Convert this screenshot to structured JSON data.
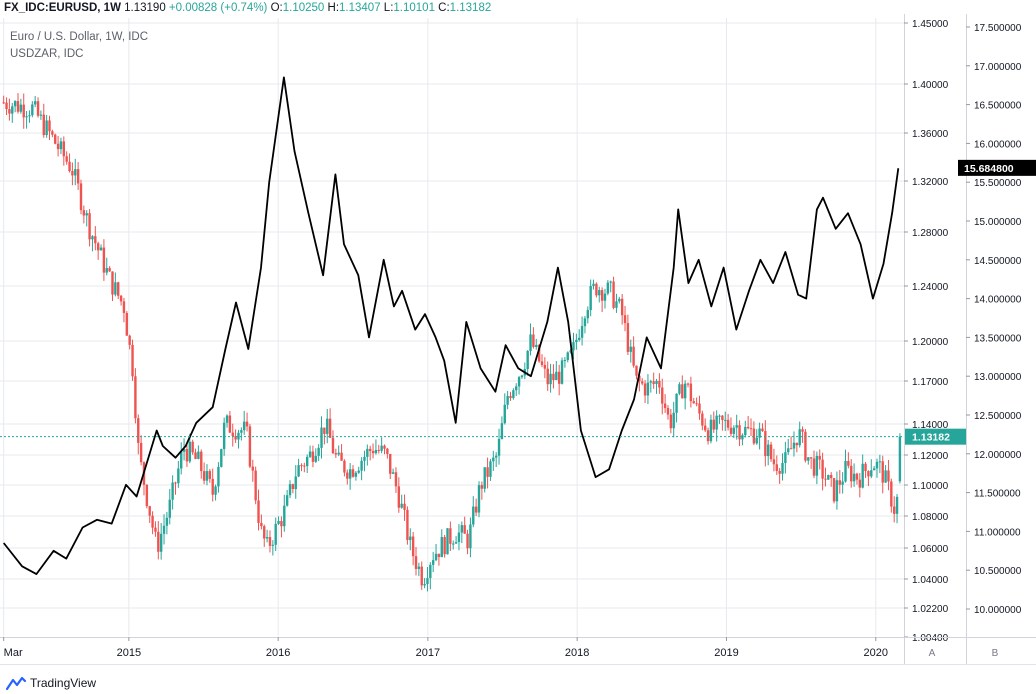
{
  "header": {
    "symbol": "FX_IDC:EURUSD, 1W",
    "last": "1.13190",
    "change": "+0.00828 (+0.74%)",
    "o_label": "O:",
    "o_value": "1.10250",
    "h_label": "H:",
    "h_value": "1.13407",
    "l_label": "L:",
    "l_value": "1.10101",
    "c_label": "C:",
    "c_value": "1.13182"
  },
  "legend": {
    "main_series": "Euro / U.S. Dollar, 1W, IDC",
    "compare_series": "USDZAR, IDC"
  },
  "axis_buttons": {
    "a": "A",
    "b": "B"
  },
  "branding": {
    "name": "TradingView"
  },
  "colors": {
    "up": "#26a69a",
    "down": "#ef5350",
    "compare_line": "#000000",
    "grid": "#e6e9ee",
    "axis_text": "#131722",
    "price_line": "#26a69a"
  },
  "chart_data": {
    "type": "candlestick_with_compare_line",
    "x_ticks": [
      "Mar",
      "2015",
      "2016",
      "2017",
      "2018",
      "2019",
      "2020"
    ],
    "x_range": [
      "2014-03",
      "2020-03"
    ],
    "axis_a": {
      "ticks": [
        "1.45000",
        "1.40000",
        "1.36000",
        "1.32000",
        "1.28000",
        "1.24000",
        "1.20000",
        "1.17000",
        "1.14000",
        "1.12000",
        "1.10000",
        "1.08000",
        "1.06000",
        "1.04000",
        "1.02200",
        "1.00400"
      ],
      "ylim": [
        1.004,
        1.45
      ],
      "scale": "log",
      "last_value_label": "1.13182",
      "last_value": 1.13182
    },
    "axis_b": {
      "ticks": [
        "17.500000",
        "17.000000",
        "16.500000",
        "16.000000",
        "15.500000",
        "15.000000",
        "14.500000",
        "14.000000",
        "13.500000",
        "13.000000",
        "12.500000",
        "12.000000",
        "11.500000",
        "11.000000",
        "10.500000",
        "10.000000"
      ],
      "ylim": [
        9.6,
        17.55
      ],
      "last_value_label": "15.684800",
      "last_value": 15.6848
    },
    "series": [
      {
        "name": "Euro / U.S. Dollar, 1W, IDC",
        "kind": "candles",
        "axis": "A",
        "close_anchors": [
          [
            "2014-03-01",
            1.385
          ],
          [
            "2014-05-10",
            1.38
          ],
          [
            "2014-06-20",
            1.36
          ],
          [
            "2014-08-15",
            1.33
          ],
          [
            "2014-09-25",
            1.285
          ],
          [
            "2014-11-15",
            1.245
          ],
          [
            "2014-12-20",
            1.225
          ],
          [
            "2015-01-10",
            1.18
          ],
          [
            "2015-01-25",
            1.12
          ],
          [
            "2015-03-10",
            1.06
          ],
          [
            "2015-04-10",
            1.085
          ],
          [
            "2015-05-15",
            1.125
          ],
          [
            "2015-06-20",
            1.115
          ],
          [
            "2015-07-25",
            1.095
          ],
          [
            "2015-08-24",
            1.14
          ],
          [
            "2015-10-15",
            1.135
          ],
          [
            "2015-11-20",
            1.07
          ],
          [
            "2015-12-05",
            1.06
          ],
          [
            "2016-01-20",
            1.085
          ],
          [
            "2016-02-15",
            1.11
          ],
          [
            "2016-03-20",
            1.12
          ],
          [
            "2016-04-25",
            1.14
          ],
          [
            "2016-05-25",
            1.115
          ],
          [
            "2016-06-25",
            1.11
          ],
          [
            "2016-08-20",
            1.125
          ],
          [
            "2016-09-20",
            1.12
          ],
          [
            "2016-10-20",
            1.095
          ],
          [
            "2016-11-20",
            1.06
          ],
          [
            "2016-12-20",
            1.04
          ],
          [
            "2017-01-10",
            1.055
          ],
          [
            "2017-03-10",
            1.07
          ],
          [
            "2017-04-10",
            1.065
          ],
          [
            "2017-05-10",
            1.1
          ],
          [
            "2017-06-20",
            1.12
          ],
          [
            "2017-07-15",
            1.16
          ],
          [
            "2017-08-20",
            1.18
          ],
          [
            "2017-09-10",
            1.2
          ],
          [
            "2017-10-20",
            1.17
          ],
          [
            "2017-11-20",
            1.175
          ],
          [
            "2017-12-20",
            1.19
          ],
          [
            "2018-01-20",
            1.225
          ],
          [
            "2018-02-15",
            1.24
          ],
          [
            "2018-03-25",
            1.235
          ],
          [
            "2018-04-20",
            1.22
          ],
          [
            "2018-05-25",
            1.17
          ],
          [
            "2018-06-20",
            1.165
          ],
          [
            "2018-07-20",
            1.17
          ],
          [
            "2018-08-15",
            1.14
          ],
          [
            "2018-09-20",
            1.17
          ],
          [
            "2018-10-20",
            1.15
          ],
          [
            "2018-11-20",
            1.135
          ],
          [
            "2018-12-20",
            1.14
          ],
          [
            "2019-01-20",
            1.14
          ],
          [
            "2019-02-20",
            1.135
          ],
          [
            "2019-03-20",
            1.135
          ],
          [
            "2019-04-25",
            1.115
          ],
          [
            "2019-05-25",
            1.115
          ],
          [
            "2019-06-25",
            1.135
          ],
          [
            "2019-07-25",
            1.115
          ],
          [
            "2019-08-20",
            1.11
          ],
          [
            "2019-09-20",
            1.095
          ],
          [
            "2019-10-20",
            1.11
          ],
          [
            "2019-11-20",
            1.105
          ],
          [
            "2019-12-25",
            1.115
          ],
          [
            "2020-01-15",
            1.11
          ],
          [
            "2020-02-10",
            1.09
          ],
          [
            "2020-02-20",
            1.08
          ],
          [
            "2020-03-01",
            1.1318
          ]
        ]
      },
      {
        "name": "USDZAR, IDC",
        "kind": "line",
        "axis": "B",
        "values": [
          [
            "2014-03-01",
            10.85
          ],
          [
            "2014-04-15",
            10.55
          ],
          [
            "2014-05-20",
            10.45
          ],
          [
            "2014-07-01",
            10.75
          ],
          [
            "2014-08-01",
            10.65
          ],
          [
            "2014-09-10",
            11.05
          ],
          [
            "2014-10-15",
            11.15
          ],
          [
            "2014-11-20",
            11.1
          ],
          [
            "2014-12-25",
            11.6
          ],
          [
            "2015-01-20",
            11.45
          ],
          [
            "2015-03-10",
            12.3
          ],
          [
            "2015-03-25",
            12.1
          ],
          [
            "2015-04-25",
            11.95
          ],
          [
            "2015-05-20",
            12.1
          ],
          [
            "2015-06-15",
            12.4
          ],
          [
            "2015-07-25",
            12.6
          ],
          [
            "2015-08-25",
            13.35
          ],
          [
            "2015-09-20",
            13.95
          ],
          [
            "2015-10-20",
            13.35
          ],
          [
            "2015-11-20",
            14.4
          ],
          [
            "2015-12-10",
            15.5
          ],
          [
            "2016-01-15",
            16.85
          ],
          [
            "2016-02-10",
            15.9
          ],
          [
            "2016-03-15",
            15.1
          ],
          [
            "2016-04-20",
            14.3
          ],
          [
            "2016-05-20",
            15.6
          ],
          [
            "2016-06-10",
            14.7
          ],
          [
            "2016-07-15",
            14.3
          ],
          [
            "2016-08-10",
            13.5
          ],
          [
            "2016-09-15",
            14.5
          ],
          [
            "2016-10-10",
            13.9
          ],
          [
            "2016-10-30",
            14.1
          ],
          [
            "2016-12-01",
            13.6
          ],
          [
            "2016-12-25",
            13.8
          ],
          [
            "2017-01-20",
            13.5
          ],
          [
            "2017-02-10",
            13.2
          ],
          [
            "2017-03-10",
            12.4
          ],
          [
            "2017-04-05",
            13.7
          ],
          [
            "2017-05-10",
            13.1
          ],
          [
            "2017-06-15",
            12.8
          ],
          [
            "2017-07-10",
            13.4
          ],
          [
            "2017-08-10",
            13.1
          ],
          [
            "2017-09-10",
            13.0
          ],
          [
            "2017-10-20",
            13.7
          ],
          [
            "2017-11-15",
            14.4
          ],
          [
            "2017-12-10",
            13.7
          ],
          [
            "2018-01-10",
            12.3
          ],
          [
            "2018-02-15",
            11.7
          ],
          [
            "2018-03-20",
            11.8
          ],
          [
            "2018-04-20",
            12.3
          ],
          [
            "2018-05-20",
            12.7
          ],
          [
            "2018-06-20",
            13.5
          ],
          [
            "2018-07-25",
            13.1
          ],
          [
            "2018-08-25",
            14.4
          ],
          [
            "2018-09-05",
            15.15
          ],
          [
            "2018-09-30",
            14.2
          ],
          [
            "2018-10-25",
            14.5
          ],
          [
            "2018-11-25",
            13.9
          ],
          [
            "2018-12-25",
            14.4
          ],
          [
            "2019-01-25",
            13.6
          ],
          [
            "2019-02-25",
            14.1
          ],
          [
            "2019-03-25",
            14.5
          ],
          [
            "2019-04-25",
            14.2
          ],
          [
            "2019-05-25",
            14.6
          ],
          [
            "2019-06-25",
            14.05
          ],
          [
            "2019-07-15",
            14.0
          ],
          [
            "2019-08-10",
            15.15
          ],
          [
            "2019-08-25",
            15.3
          ],
          [
            "2019-09-25",
            14.9
          ],
          [
            "2019-10-25",
            15.1
          ],
          [
            "2019-11-25",
            14.7
          ],
          [
            "2019-12-25",
            14.0
          ],
          [
            "2020-01-20",
            14.45
          ],
          [
            "2020-02-10",
            15.1
          ],
          [
            "2020-02-25",
            15.68
          ]
        ]
      }
    ],
    "grid": true,
    "legend": "top-left"
  }
}
